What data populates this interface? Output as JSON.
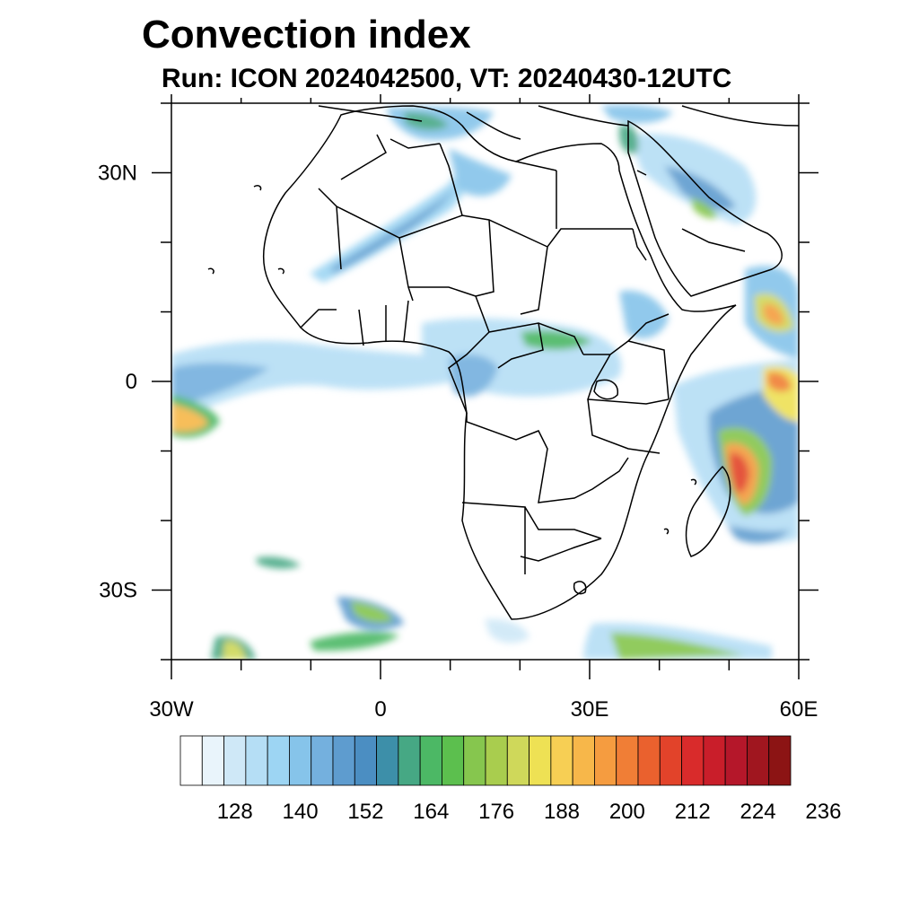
{
  "header": {
    "title": "Convection index",
    "subtitle": "Run: ICON 2024042500,  VT: 20240430-12UTC"
  },
  "axes": {
    "lon_range": [
      -30,
      60
    ],
    "lat_range": [
      -40,
      40
    ],
    "x_ticks": [
      {
        "value": -30,
        "label": "30W"
      },
      {
        "value": 0,
        "label": "0"
      },
      {
        "value": 30,
        "label": "30E"
      },
      {
        "value": 60,
        "label": "60E"
      }
    ],
    "y_ticks": [
      {
        "value": 30,
        "label": "30N"
      },
      {
        "value": 0,
        "label": "0"
      },
      {
        "value": -30,
        "label": "30S"
      }
    ]
  },
  "colorbar": {
    "colors": [
      "#ffffff",
      "#e9f4fb",
      "#cfe8f7",
      "#b5def5",
      "#9dd5f3",
      "#86c4ea",
      "#74b0de",
      "#5e9ccf",
      "#4b8ec2",
      "#3d8fa9",
      "#46a884",
      "#4cb865",
      "#5cbf4e",
      "#86c64e",
      "#a9cd4e",
      "#cfd85a",
      "#eee154",
      "#f7cf54",
      "#f7b74a",
      "#f59c40",
      "#f07e36",
      "#ea612e",
      "#e2432a",
      "#d92b2b",
      "#c91e2a",
      "#b5172a",
      "#a0161f",
      "#8c1414"
    ],
    "labels": [
      "128",
      "140",
      "152",
      "164",
      "176",
      "188",
      "200",
      "212",
      "224",
      "236"
    ],
    "label_slot_start": 2,
    "label_slot_step": 3
  },
  "colors": {
    "coast": "#000000",
    "frame": "#000000",
    "background": "#ffffff"
  }
}
